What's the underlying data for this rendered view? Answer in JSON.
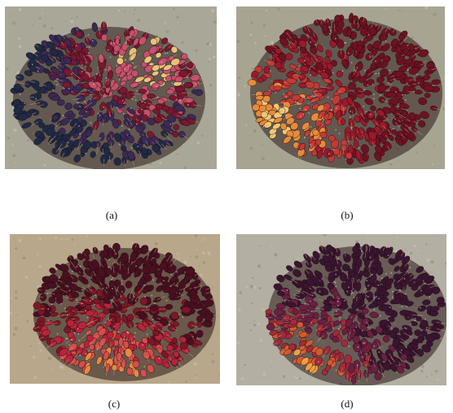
{
  "figure": {
    "panels": [
      {
        "caption": "(a)",
        "ripeness_palette": [
          "#1f2a45",
          "#3a2a55",
          "#7a1830",
          "#c7506a",
          "#e8c37a"
        ]
      },
      {
        "caption": "(b)",
        "ripeness_palette": [
          "#6e1222",
          "#9a1a2a",
          "#c33a35",
          "#e88a3a",
          "#f1c773"
        ]
      },
      {
        "caption": "(c)",
        "ripeness_palette": [
          "#4a1020",
          "#7d1726",
          "#b8243a",
          "#d4504a",
          "#e98840"
        ]
      },
      {
        "caption": "(d)",
        "ripeness_palette": [
          "#3a1530",
          "#6a2040",
          "#a32a3a",
          "#d35a2e",
          "#f0a040"
        ]
      }
    ],
    "backgrounds": [
      "#a9a797",
      "#a7a592",
      "#b8a78a",
      "#b3afa2"
    ]
  }
}
